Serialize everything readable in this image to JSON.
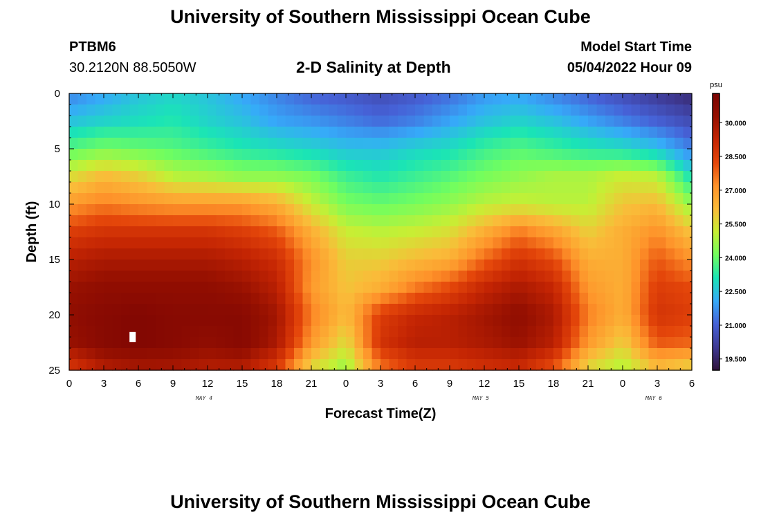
{
  "header": {
    "main_title": "University of Southern Mississippi Ocean Cube",
    "station_id": "PTBM6",
    "station_coords": "30.2120N  88.5050W",
    "chart_title": "2-D Salinity at Depth",
    "model_start_label": "Model Start Time",
    "model_start_value": "05/04/2022 Hour 09"
  },
  "footer": {
    "title": "University of Southern Mississippi Ocean Cube"
  },
  "chart_data": {
    "type": "heatmap",
    "title": "2-D Salinity at Depth",
    "xlabel": "Forecast Time(Z)",
    "ylabel": "Depth (ft)",
    "x_unit": "forecast hours (0 = 00Z May 4)",
    "xlim": [
      0,
      54
    ],
    "ylim": [
      0,
      25
    ],
    "y_inverted": true,
    "x_tick_hours": [
      0,
      3,
      6,
      9,
      12,
      15,
      18,
      21,
      24,
      27,
      30,
      33,
      36,
      39,
      42,
      45,
      48,
      51,
      54
    ],
    "x_tick_labels": [
      "0",
      "3",
      "6",
      "9",
      "12",
      "15",
      "18",
      "21",
      "0",
      "3",
      "6",
      "9",
      "12",
      "15",
      "18",
      "21",
      "0",
      "3",
      "6"
    ],
    "y_ticks": [
      0,
      5,
      10,
      15,
      20,
      25
    ],
    "y_tick_labels": [
      "0",
      "5",
      "10",
      "15",
      "20",
      "25"
    ],
    "day_labels": [
      {
        "hour": 12,
        "text": "MAY 4"
      },
      {
        "hour": 36,
        "text": "MAY 5"
      },
      {
        "hour": 51,
        "text": "MAY 6"
      }
    ],
    "colorbar": {
      "unit": "psu",
      "min": 19.0,
      "max": 31.3,
      "ticks": [
        19.5,
        21.0,
        22.5,
        24.0,
        25.5,
        27.0,
        28.5,
        30.0
      ],
      "tick_labels": [
        "19.500",
        "21.000",
        "22.500",
        "24.000",
        "25.500",
        "27.000",
        "28.500",
        "30.000"
      ],
      "colors": [
        "#30123b",
        "#3e3994",
        "#4662d7",
        "#36aaf9",
        "#1ae4b6",
        "#72fe5e",
        "#c7ef34",
        "#fabb39",
        "#fe922a",
        "#e4460a",
        "#c42503",
        "#961001",
        "#7a0403"
      ]
    },
    "grid": {
      "x_hours": [
        0,
        3,
        6,
        9,
        12,
        15,
        18,
        21,
        24,
        27,
        30,
        33,
        36,
        39,
        42,
        45,
        48,
        51,
        54
      ],
      "depths_ft": [
        0,
        2.5,
        5,
        7.5,
        10,
        12.5,
        15,
        17.5,
        20,
        22.5,
        25
      ],
      "salinity_psu": [
        [
          21.5,
          22.0,
          22.5,
          22.8,
          22.5,
          22.0,
          21.5,
          21.0,
          20.8,
          20.5,
          20.8,
          21.2,
          21.8,
          22.0,
          21.5,
          21.0,
          20.5,
          20.0,
          19.6
        ],
        [
          22.5,
          22.8,
          23.0,
          23.2,
          22.8,
          22.5,
          22.0,
          21.8,
          21.5,
          21.2,
          21.5,
          22.0,
          22.5,
          22.8,
          22.5,
          22.0,
          21.5,
          21.0,
          20.5
        ],
        [
          23.8,
          24.2,
          24.0,
          23.8,
          23.5,
          23.2,
          23.0,
          22.8,
          22.5,
          22.5,
          22.8,
          23.0,
          23.5,
          23.8,
          23.5,
          23.2,
          23.0,
          22.5,
          21.5
        ],
        [
          25.5,
          26.2,
          25.8,
          25.0,
          24.8,
          24.5,
          24.5,
          24.2,
          23.5,
          23.2,
          23.5,
          23.8,
          24.2,
          24.5,
          24.8,
          24.8,
          25.2,
          25.0,
          23.0
        ],
        [
          27.0,
          27.5,
          27.2,
          27.0,
          27.0,
          27.0,
          26.5,
          25.2,
          24.2,
          24.0,
          24.2,
          24.5,
          25.0,
          25.2,
          25.0,
          25.0,
          26.0,
          26.2,
          24.5
        ],
        [
          28.5,
          28.8,
          28.8,
          28.8,
          28.8,
          28.5,
          28.0,
          26.5,
          25.2,
          25.0,
          25.2,
          25.5,
          26.5,
          27.5,
          26.8,
          25.8,
          26.5,
          27.2,
          26.0
        ],
        [
          29.5,
          29.8,
          29.8,
          29.8,
          29.8,
          29.5,
          29.0,
          27.2,
          25.8,
          25.8,
          26.2,
          26.5,
          27.8,
          28.8,
          28.2,
          26.5,
          26.5,
          28.0,
          27.2
        ],
        [
          30.2,
          30.5,
          30.5,
          30.5,
          30.5,
          30.2,
          29.5,
          27.0,
          26.0,
          26.5,
          27.5,
          28.2,
          29.2,
          29.8,
          29.2,
          27.0,
          26.5,
          28.5,
          28.2
        ],
        [
          30.5,
          30.8,
          31.0,
          30.8,
          30.8,
          30.8,
          30.0,
          27.5,
          26.2,
          28.5,
          29.2,
          29.5,
          30.0,
          30.5,
          29.8,
          27.5,
          26.5,
          28.8,
          28.5
        ],
        [
          30.2,
          30.8,
          31.0,
          30.8,
          30.5,
          30.8,
          29.8,
          27.0,
          25.5,
          28.8,
          29.5,
          29.5,
          29.8,
          30.2,
          29.5,
          27.0,
          25.8,
          28.0,
          27.8
        ],
        [
          28.5,
          29.5,
          29.8,
          29.8,
          29.5,
          29.5,
          28.5,
          25.5,
          24.5,
          27.5,
          28.5,
          28.5,
          28.8,
          29.0,
          28.0,
          25.5,
          24.8,
          26.0,
          25.5
        ]
      ],
      "missing_cells": [
        {
          "hour": 5.5,
          "depth_ft": 22.0
        }
      ]
    }
  }
}
